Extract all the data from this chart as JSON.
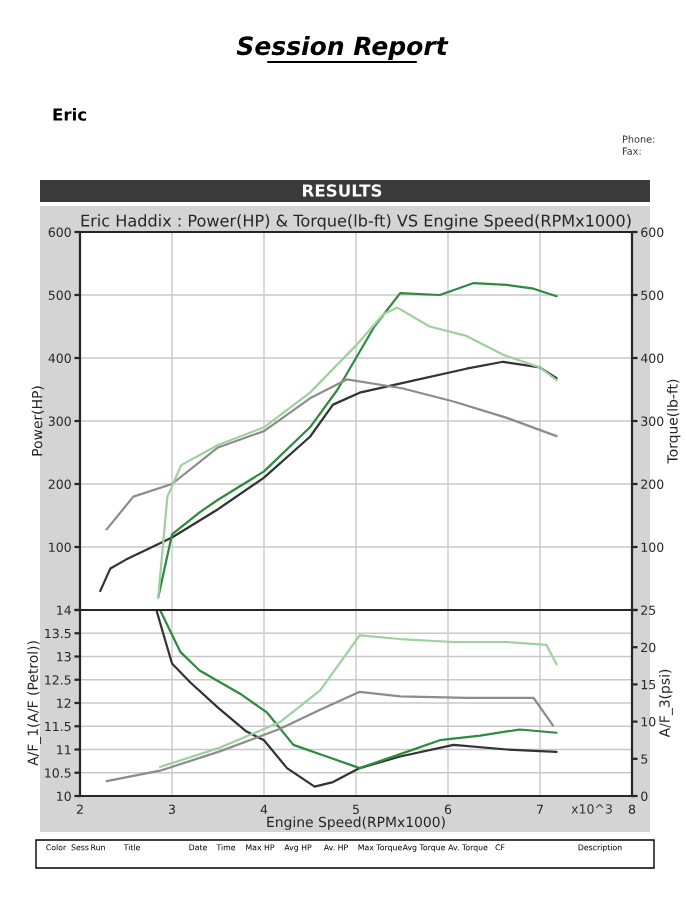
{
  "chart_data": [
    {
      "type": "line",
      "title": "Eric Haddix : Power(HP) & Torque(lb-ft) VS Engine Speed(RPMx1000)",
      "ylabel": "Power(HP)",
      "y2label": "Torque(lb-ft)",
      "annotations": [
        "Session Report",
        "Eric",
        "Phone:",
        "Fax:",
        "RESULTS"
      ],
      "xlim": [
        2,
        8
      ],
      "xticks": [
        2,
        3,
        4,
        5,
        6,
        7,
        8
      ],
      "ylim": [
        0,
        600
      ],
      "yticks": [
        {
          "value": 0,
          "label": null
        },
        100,
        200,
        300,
        400,
        500,
        600
      ],
      "y2lim": [
        0,
        600
      ],
      "y2ticks": [
        {
          "value": 0,
          "label": null
        },
        100,
        200,
        300,
        400,
        500,
        600
      ],
      "tick_labels": "y",
      "grid": true,
      "series": [
        {
          "color": "#333333",
          "x": [
            2.22,
            2.33,
            2.5,
            3.0,
            3.5,
            4.0,
            4.5,
            4.75,
            5.04,
            5.5,
            6.2,
            6.6,
            7.0,
            7.18
          ],
          "values": [
            30,
            66,
            80,
            115,
            160,
            210,
            275,
            326,
            345,
            360,
            383,
            394,
            385,
            368
          ]
        },
        {
          "color": "#2e8b3e",
          "x": [
            2.85,
            3.0,
            3.3,
            3.5,
            4.0,
            4.5,
            4.8,
            5.0,
            5.2,
            5.48,
            5.91,
            6.28,
            6.64,
            6.93,
            7.18
          ],
          "values": [
            20,
            120,
            155,
            175,
            220,
            290,
            350,
            400,
            450,
            503,
            500,
            519,
            516,
            510,
            498
          ]
        },
        {
          "color": "#8c8c8c",
          "axis": "y2",
          "x": [
            2.29,
            2.58,
            3.0,
            3.5,
            4.0,
            4.5,
            4.9,
            5.5,
            6.06,
            6.64,
            7.18
          ],
          "values": [
            128,
            180,
            200,
            258,
            284,
            336,
            366,
            352,
            331,
            305,
            276
          ]
        },
        {
          "color": "#9fd09f",
          "axis": "y2",
          "x": [
            2.85,
            2.95,
            3.1,
            3.5,
            4.0,
            4.5,
            5.0,
            5.3,
            5.45,
            5.8,
            6.2,
            6.6,
            7.0,
            7.18
          ],
          "values": [
            20,
            180,
            230,
            262,
            290,
            345,
            420,
            470,
            480,
            450,
            435,
            405,
            385,
            365
          ]
        }
      ]
    },
    {
      "type": "line",
      "xlabel": "Engine Speed(RPMx1000)",
      "ylabel": "A/F_1(A/F (Petrol))",
      "y2label": "A/F_3(psi)",
      "annotations": [
        "x10^3",
        "Color",
        "Sess",
        "Run",
        "Title",
        "Date",
        "Time",
        "Max HP",
        "Avg HP",
        "Av. HP",
        "Max Torque",
        "Avg Torque",
        "Av. Torque",
        "CF",
        "Description"
      ],
      "xlim": [
        2,
        8
      ],
      "xticks": [
        2,
        3,
        4,
        5,
        6,
        7,
        8
      ],
      "ylim": [
        10,
        14
      ],
      "yticks": [
        10,
        10.5,
        11,
        11.5,
        12,
        12.5,
        13,
        13.5,
        14
      ],
      "y2lim": [
        0,
        25
      ],
      "y2ticks": [
        0,
        5,
        10,
        15,
        20,
        25
      ],
      "grid": true,
      "series": [
        {
          "color": "#333333",
          "x": [
            2.83,
            3.0,
            3.2,
            3.5,
            3.8,
            4.0,
            4.25,
            4.55,
            4.75,
            5.04,
            5.48,
            6.06,
            6.64,
            7.18
          ],
          "values": [
            14,
            12.85,
            12.44,
            11.9,
            11.4,
            11.2,
            10.6,
            10.2,
            10.3,
            10.6,
            10.85,
            11.1,
            11.0,
            10.95
          ]
        },
        {
          "color": "#2e8b3e",
          "x": [
            2.87,
            3.09,
            3.3,
            3.74,
            4.03,
            4.32,
            4.68,
            5.04,
            5.48,
            5.91,
            6.35,
            6.78,
            7.18
          ],
          "values": [
            14,
            13.1,
            12.7,
            12.2,
            11.8,
            11.1,
            10.85,
            10.6,
            10.9,
            11.2,
            11.3,
            11.43,
            11.36
          ]
        },
        {
          "color": "#8c8c8c",
          "axis": "y2",
          "x": [
            2.29,
            2.87,
            3.52,
            4.17,
            4.61,
            5.04,
            5.48,
            6.2,
            6.93,
            7.14
          ],
          "values": [
            2.0,
            3.4,
            6.0,
            9.0,
            11.6,
            14.0,
            13.4,
            13.2,
            13.2,
            9.5
          ]
        },
        {
          "color": "#9fd09f",
          "axis": "y2",
          "x": [
            2.87,
            3.52,
            4.17,
            4.61,
            5.04,
            5.48,
            6.06,
            6.64,
            7.07,
            7.18
          ],
          "values": [
            3.9,
            6.5,
            9.9,
            14.2,
            21.6,
            21.1,
            20.7,
            20.7,
            20.3,
            17.7
          ]
        }
      ]
    }
  ]
}
